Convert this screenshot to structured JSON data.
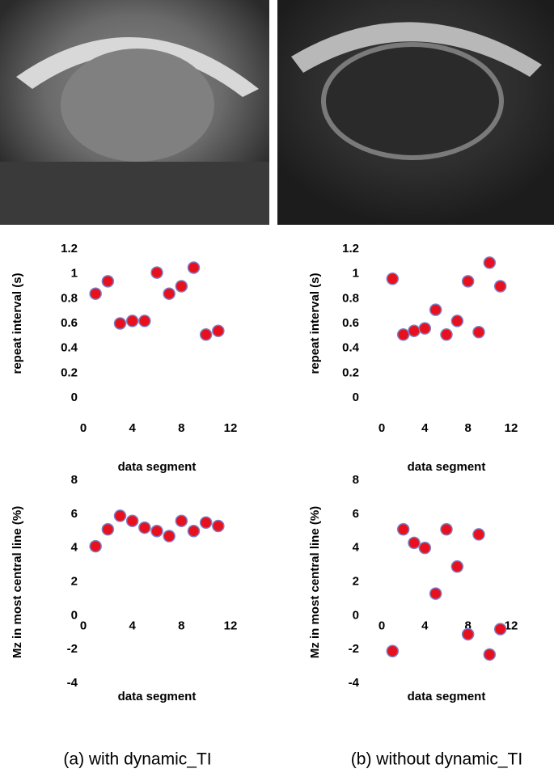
{
  "chart_data": [
    {
      "type": "scatter",
      "x": [
        1,
        2,
        3,
        4,
        5,
        6,
        7,
        8,
        9,
        10,
        11
      ],
      "values": [
        0.84,
        0.94,
        0.6,
        0.62,
        0.62,
        1.01,
        0.84,
        0.9,
        1.05,
        0.51,
        0.54
      ],
      "xlim": [
        0,
        12
      ],
      "xticks": [
        0,
        4,
        8,
        12
      ],
      "ylim": [
        0,
        1.2
      ],
      "yticks": [
        0,
        0.2,
        0.4,
        0.6,
        0.8,
        1,
        1.2
      ],
      "x_label": "data segment",
      "y_label": "repeat interval (s)",
      "color": "#e8101c",
      "grid": false
    },
    {
      "type": "scatter",
      "x": [
        1,
        2,
        3,
        4,
        5,
        6,
        7,
        8,
        9,
        10,
        11
      ],
      "values": [
        0.96,
        0.51,
        0.54,
        0.56,
        0.71,
        0.51,
        0.62,
        0.94,
        0.53,
        1.09,
        0.9
      ],
      "xlim": [
        0,
        12
      ],
      "xticks": [
        0,
        4,
        8,
        12
      ],
      "ylim": [
        0,
        1.2
      ],
      "yticks": [
        0,
        0.2,
        0.4,
        0.6,
        0.8,
        1,
        1.2
      ],
      "x_label": "data segment",
      "y_label": "repeat interval (s)",
      "color": "#e8101c",
      "grid": false
    },
    {
      "type": "scatter",
      "x": [
        1,
        2,
        3,
        4,
        5,
        6,
        7,
        8,
        9,
        10,
        11
      ],
      "values": [
        4.1,
        5.1,
        5.9,
        5.6,
        5.2,
        5.0,
        4.7,
        5.6,
        5.0,
        5.5,
        5.3
      ],
      "xlim": [
        0,
        12
      ],
      "xticks": [
        0,
        4,
        8,
        12
      ],
      "ylim": [
        -4,
        8
      ],
      "yticks": [
        -4,
        -2,
        0,
        2,
        4,
        6,
        8
      ],
      "x_label": "data segment",
      "y_label": "Mz in most central line (%)",
      "color": "#e8101c",
      "grid": false
    },
    {
      "type": "scatter",
      "x": [
        1,
        2,
        3,
        4,
        5,
        6,
        7,
        8,
        9,
        10,
        11
      ],
      "values": [
        -2.1,
        5.1,
        4.3,
        4.0,
        1.3,
        5.1,
        2.9,
        -1.1,
        4.8,
        -2.3,
        -0.8
      ],
      "xlim": [
        0,
        12
      ],
      "xticks": [
        0,
        4,
        8,
        12
      ],
      "ylim": [
        -4,
        8
      ],
      "yticks": [
        -4,
        -2,
        0,
        2,
        4,
        6,
        8
      ],
      "x_label": "data segment",
      "y_label": "Mz in most central line (%)",
      "color": "#e8101c",
      "grid": false
    }
  ],
  "captions": [
    "(a) with dynamic_TI",
    "(b) without dynamic_TI"
  ]
}
